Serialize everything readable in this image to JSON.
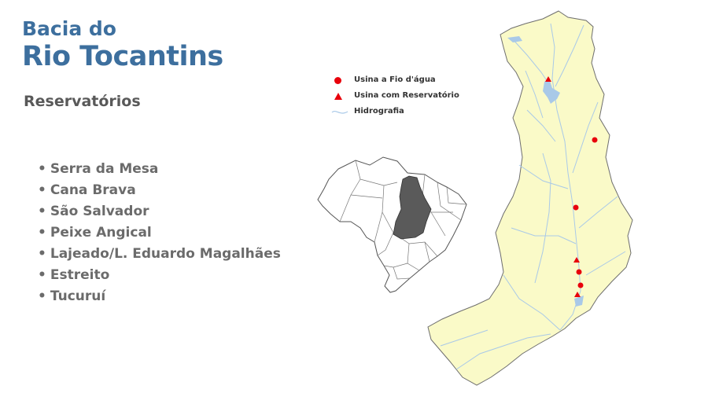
{
  "title": {
    "line1": "Bacia do",
    "line2": "Rio Tocantins"
  },
  "subtitle": "Reservatórios",
  "reservoirs": [
    "Serra da Mesa",
    "Cana Brava",
    "São Salvador",
    "Peixe Angical",
    "Lajeado/L. Eduardo Magalhães",
    "Estreito",
    "Tucuruí"
  ],
  "legend": {
    "run_of_river": "Usina a Fio d'água",
    "reservoir_plant": "Usina com Reservatório",
    "hydrography": "Hidrografia"
  },
  "colors": {
    "title": "#3d6f9e",
    "basin_fill": "#fafac8",
    "plant_marker": "#e8000b",
    "river": "#a9c9e8",
    "brazil_highlight": "#5a5a5a"
  },
  "icons": {
    "run_of_river": "red-circle-icon",
    "reservoir_plant": "red-triangle-icon",
    "hydrography": "river-line-icon"
  }
}
